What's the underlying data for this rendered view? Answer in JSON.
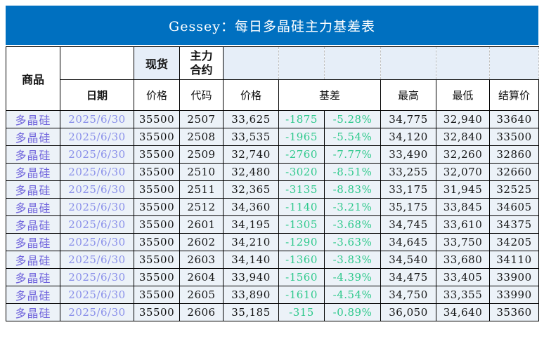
{
  "banner": {
    "title": "Gessey：每日多晶硅主力基差表"
  },
  "colors": {
    "banner_bg": "#0070C0",
    "banner_text": "#FFFFFF",
    "header_fill": "#E6EEF8",
    "row_fill": "#ECF2F8",
    "grid_line": "#000000",
    "dashed_line": "#BFBFBF",
    "commodity_text": "#7064DC",
    "date_text": "#8A90EA",
    "basis_text": "#2EC98C",
    "number_text": "#141414"
  },
  "header": {
    "commodity": "商品",
    "date": "日期",
    "spot": "现货",
    "main_contract": "主力合约",
    "spot_price": "价格",
    "code": "代码",
    "contract_price": "价格",
    "basis": "基差",
    "high": "最高",
    "low": "最低",
    "settlement": "结算价"
  },
  "rows": [
    {
      "commodity": "多晶硅",
      "date": "2025/6/30",
      "spot_price": "35500",
      "code": "2507",
      "price": "33,625",
      "basis": "-1875",
      "basis_pct": "-5.28%",
      "high": "34,775",
      "low": "32,940",
      "settlement": "33640"
    },
    {
      "commodity": "多晶硅",
      "date": "2025/6/30",
      "spot_price": "35500",
      "code": "2508",
      "price": "33,535",
      "basis": "-1965",
      "basis_pct": "-5.54%",
      "high": "34,120",
      "low": "32,840",
      "settlement": "33500"
    },
    {
      "commodity": "多晶硅",
      "date": "2025/6/30",
      "spot_price": "35500",
      "code": "2509",
      "price": "32,740",
      "basis": "-2760",
      "basis_pct": "-7.77%",
      "high": "33,490",
      "low": "32,260",
      "settlement": "32860"
    },
    {
      "commodity": "多晶硅",
      "date": "2025/6/30",
      "spot_price": "35500",
      "code": "2510",
      "price": "32,480",
      "basis": "-3020",
      "basis_pct": "-8.51%",
      "high": "33,255",
      "low": "32,070",
      "settlement": "32660"
    },
    {
      "commodity": "多晶硅",
      "date": "2025/6/30",
      "spot_price": "35500",
      "code": "2511",
      "price": "32,365",
      "basis": "-3135",
      "basis_pct": "-8.83%",
      "high": "33,175",
      "low": "31,945",
      "settlement": "32525"
    },
    {
      "commodity": "多晶硅",
      "date": "2025/6/30",
      "spot_price": "35500",
      "code": "2512",
      "price": "34,360",
      "basis": "-1140",
      "basis_pct": "-3.21%",
      "high": "35,175",
      "low": "33,845",
      "settlement": "34605"
    },
    {
      "commodity": "多晶硅",
      "date": "2025/6/30",
      "spot_price": "35500",
      "code": "2601",
      "price": "34,195",
      "basis": "-1305",
      "basis_pct": "-3.68%",
      "high": "34,745",
      "low": "33,610",
      "settlement": "34375"
    },
    {
      "commodity": "多晶硅",
      "date": "2025/6/30",
      "spot_price": "35500",
      "code": "2602",
      "price": "34,210",
      "basis": "-1290",
      "basis_pct": "-3.63%",
      "high": "34,645",
      "low": "33,750",
      "settlement": "34205"
    },
    {
      "commodity": "多晶硅",
      "date": "2025/6/30",
      "spot_price": "35500",
      "code": "2603",
      "price": "34,140",
      "basis": "-1360",
      "basis_pct": "-3.83%",
      "high": "34,540",
      "low": "33,680",
      "settlement": "34110"
    },
    {
      "commodity": "多晶硅",
      "date": "2025/6/30",
      "spot_price": "35500",
      "code": "2604",
      "price": "33,940",
      "basis": "-1560",
      "basis_pct": "-4.39%",
      "high": "34,475",
      "low": "33,405",
      "settlement": "33900"
    },
    {
      "commodity": "多晶硅",
      "date": "2025/6/30",
      "spot_price": "35500",
      "code": "2605",
      "price": "33,890",
      "basis": "-1610",
      "basis_pct": "-4.54%",
      "high": "34,750",
      "low": "33,355",
      "settlement": "33990"
    },
    {
      "commodity": "多晶硅",
      "date": "2025/6/30",
      "spot_price": "35500",
      "code": "2606",
      "price": "35,185",
      "basis": "-315",
      "basis_pct": "-0.89%",
      "high": "36,050",
      "low": "34,640",
      "settlement": "35360"
    }
  ]
}
